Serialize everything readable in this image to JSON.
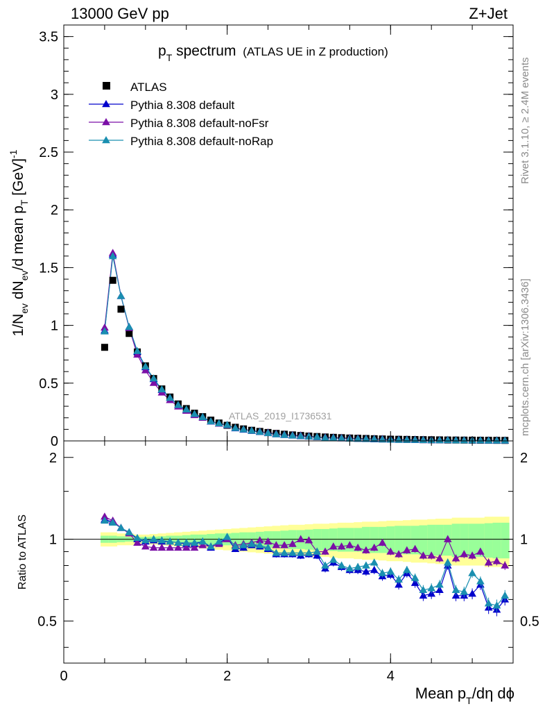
{
  "header": {
    "energy": "13000 GeV pp",
    "process": "Z+Jet",
    "title_main": "p",
    "title_sub": "T",
    "title_rest": " spectrum",
    "title_paren": "(ATLAS UE in Z production)",
    "watermark": "ATLAS_2019_I1736531",
    "rivet": "Rivet 3.1.10, ≥ 2.4M events",
    "mcplots": "mcplots.cern.ch [arXiv:1306.3436]"
  },
  "axes": {
    "ratio_label": "Ratio to ATLAS",
    "x_label": "Mean p",
    "x_label_sub": "T",
    "x_label_rest": "/dη dϕ",
    "y_label_parts": [
      "1/N",
      "ev",
      " dN",
      "ev",
      "/d mean p",
      "T",
      " [GeV]",
      "-1"
    ]
  },
  "legend": {
    "entries": [
      {
        "label": "ATLAS",
        "marker": "square",
        "color": "#000000"
      },
      {
        "label": "Pythia 8.308 default",
        "marker": "triangle",
        "color": "#0000cc"
      },
      {
        "label": "Pythia 8.308 default-noFsr",
        "marker": "triangle",
        "color": "#7a0fa6"
      },
      {
        "label": "Pythia 8.308 default-noRap",
        "marker": "triangle",
        "color": "#1a8fb0"
      }
    ]
  },
  "chart_data": {
    "type": "scatter",
    "x": [
      0.5,
      0.6,
      0.7,
      0.8,
      0.9,
      1.0,
      1.1,
      1.2,
      1.3,
      1.4,
      1.5,
      1.6,
      1.7,
      1.8,
      1.9,
      2.0,
      2.1,
      2.2,
      2.3,
      2.4,
      2.5,
      2.6,
      2.7,
      2.8,
      2.9,
      3.0,
      3.1,
      3.2,
      3.3,
      3.4,
      3.5,
      3.6,
      3.7,
      3.8,
      3.9,
      4.0,
      4.1,
      4.2,
      4.3,
      4.4,
      4.5,
      4.6,
      4.7,
      4.8,
      4.9,
      5.0,
      5.1,
      5.2,
      5.3,
      5.4
    ],
    "xlim": [
      0,
      5.5
    ],
    "ylim": [
      0,
      3.6
    ],
    "ratio_ylim": [
      0.35,
      2.3
    ],
    "x_ticks": [
      0,
      2,
      4
    ],
    "y_ticks": [
      0,
      0.5,
      1,
      1.5,
      2,
      2.5,
      3,
      3.5
    ],
    "ratio_ticks": [
      0.5,
      1,
      2
    ],
    "series": [
      {
        "name": "ATLAS",
        "color": "#000000",
        "marker": "square",
        "values": [
          0.81,
          1.39,
          1.14,
          0.93,
          0.77,
          0.65,
          0.54,
          0.45,
          0.38,
          0.32,
          0.28,
          0.24,
          0.21,
          0.18,
          0.155,
          0.135,
          0.118,
          0.104,
          0.092,
          0.082,
          0.073,
          0.065,
          0.058,
          0.052,
          0.047,
          0.042,
          0.038,
          0.034,
          0.031,
          0.028,
          0.025,
          0.023,
          0.021,
          0.019,
          0.017,
          0.015,
          0.014,
          0.013,
          0.012,
          0.011,
          0.01,
          0.009,
          0.008,
          0.0075,
          0.007,
          0.0065,
          0.006,
          0.0055,
          0.005,
          0.0045
        ]
      },
      {
        "name": "Pythia 8.308 default",
        "color": "#0000cc",
        "marker": "triangle",
        "ratio": [
          1.18,
          1.16,
          1.1,
          1.06,
          1.0,
          0.98,
          0.99,
          0.98,
          0.98,
          0.97,
          0.96,
          0.96,
          0.98,
          0.93,
          0.97,
          1.01,
          0.92,
          0.93,
          0.95,
          0.94,
          0.92,
          0.88,
          0.88,
          0.88,
          0.87,
          0.88,
          0.87,
          0.78,
          0.82,
          0.79,
          0.77,
          0.77,
          0.76,
          0.77,
          0.73,
          0.74,
          0.68,
          0.75,
          0.69,
          0.62,
          0.63,
          0.65,
          0.8,
          0.62,
          0.62,
          0.63,
          0.68,
          0.56,
          0.55,
          0.6
        ]
      },
      {
        "name": "Pythia 8.308 default-noFsr",
        "color": "#7a0fa6",
        "marker": "triangle",
        "ratio": [
          1.21,
          1.17,
          1.1,
          1.05,
          0.97,
          0.94,
          0.93,
          0.93,
          0.93,
          0.93,
          0.93,
          0.93,
          0.95,
          0.94,
          0.96,
          1.0,
          0.95,
          0.96,
          0.97,
          0.99,
          0.98,
          0.95,
          0.95,
          0.96,
          1.0,
          0.99,
          0.9,
          0.9,
          0.94,
          0.94,
          0.95,
          0.93,
          0.91,
          0.93,
          0.97,
          0.9,
          0.88,
          0.91,
          0.92,
          0.87,
          0.87,
          0.85,
          1.0,
          0.85,
          0.88,
          0.87,
          0.9,
          0.82,
          0.83,
          0.8
        ]
      },
      {
        "name": "Pythia 8.308 default-noRap",
        "color": "#1a8fb0",
        "marker": "triangle",
        "ratio": [
          1.17,
          1.15,
          1.1,
          1.06,
          1.01,
          0.99,
          1.0,
          0.99,
          0.98,
          0.97,
          0.97,
          0.97,
          0.98,
          0.94,
          0.98,
          1.02,
          0.94,
          0.95,
          0.96,
          0.95,
          0.93,
          0.89,
          0.89,
          0.89,
          0.89,
          0.89,
          0.9,
          0.8,
          0.84,
          0.8,
          0.78,
          0.79,
          0.8,
          0.82,
          0.75,
          0.76,
          0.71,
          0.77,
          0.72,
          0.65,
          0.66,
          0.68,
          0.82,
          0.65,
          0.64,
          0.75,
          0.7,
          0.58,
          0.57,
          0.62
        ]
      }
    ],
    "band_outer": [
      0.06,
      0.06,
      0.05,
      0.05,
      0.04,
      0.04,
      0.045,
      0.05,
      0.055,
      0.06,
      0.065,
      0.07,
      0.075,
      0.08,
      0.085,
      0.09,
      0.095,
      0.1,
      0.105,
      0.11,
      0.115,
      0.12,
      0.125,
      0.13,
      0.13,
      0.135,
      0.14,
      0.14,
      0.145,
      0.15,
      0.15,
      0.155,
      0.16,
      0.16,
      0.165,
      0.17,
      0.17,
      0.175,
      0.18,
      0.18,
      0.185,
      0.19,
      0.19,
      0.2,
      0.2,
      0.2,
      0.2,
      0.21,
      0.21,
      0.21
    ],
    "band_inner": [
      0.03,
      0.03,
      0.025,
      0.02,
      0.02,
      0.02,
      0.022,
      0.025,
      0.03,
      0.03,
      0.035,
      0.04,
      0.04,
      0.045,
      0.05,
      0.05,
      0.055,
      0.06,
      0.06,
      0.065,
      0.07,
      0.07,
      0.075,
      0.08,
      0.08,
      0.085,
      0.09,
      0.09,
      0.095,
      0.1,
      0.1,
      0.1,
      0.11,
      0.11,
      0.11,
      0.115,
      0.12,
      0.12,
      0.12,
      0.125,
      0.13,
      0.13,
      0.13,
      0.14,
      0.14,
      0.14,
      0.14,
      0.145,
      0.15,
      0.15
    ]
  },
  "styles": {
    "band_outer_color": "#ffff99",
    "band_inner_color": "#99ff99"
  }
}
